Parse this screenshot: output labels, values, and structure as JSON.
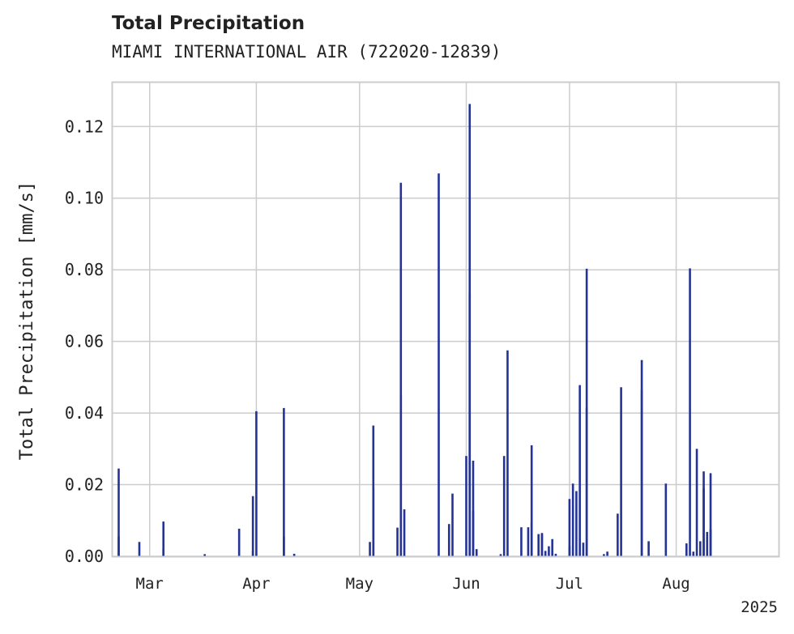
{
  "chart_data": {
    "type": "bar",
    "title": "Total Precipitation",
    "subtitle": "MIAMI INTERNATIONAL AIR (722020-12839)",
    "ylabel": "Total Precipitation [mm/s]",
    "xlabel": "",
    "ylim": [
      0,
      0.1325
    ],
    "xlim": [
      "2025-02-18",
      "2025-08-31"
    ],
    "grid": true,
    "yticks": [
      "0.00",
      "0.02",
      "0.04",
      "0.06",
      "0.08",
      "0.10",
      "0.12"
    ],
    "ytick_values": [
      0,
      0.02,
      0.04,
      0.06,
      0.08,
      0.1,
      0.12
    ],
    "xticks": [
      {
        "date": "2025-03-01",
        "label": "Mar"
      },
      {
        "date": "2025-04-01",
        "label": "Apr"
      },
      {
        "date": "2025-05-01",
        "label": "May"
      },
      {
        "date": "2025-06-01",
        "label": "Jun"
      },
      {
        "date": "2025-07-01",
        "label": "Jul"
      },
      {
        "date": "2025-08-01",
        "label": "Aug"
      }
    ],
    "year_label": "2025",
    "series_color": "#233396",
    "points": [
      [
        "2025-02-20",
        0.0055
      ],
      [
        "2025-02-20",
        0.0245
      ],
      [
        "2025-02-26",
        0.004
      ],
      [
        "2025-03-05",
        0.0097
      ],
      [
        "2025-03-05",
        0.002
      ],
      [
        "2025-03-17",
        0.0006
      ],
      [
        "2025-03-27",
        0.0077
      ],
      [
        "2025-03-31",
        0.0014
      ],
      [
        "2025-03-31",
        0.0168
      ],
      [
        "2025-04-01",
        0.0405
      ],
      [
        "2025-04-09",
        0.0055
      ],
      [
        "2025-04-09",
        0.0414
      ],
      [
        "2025-04-12",
        0.0007
      ],
      [
        "2025-05-04",
        0.004
      ],
      [
        "2025-05-05",
        0.0365
      ],
      [
        "2025-05-05",
        0.019
      ],
      [
        "2025-05-12",
        0.008
      ],
      [
        "2025-05-13",
        0.1043
      ],
      [
        "2025-05-13",
        0.0451
      ],
      [
        "2025-05-14",
        0.0131
      ],
      [
        "2025-05-24",
        0.1069
      ],
      [
        "2025-05-27",
        0.009
      ],
      [
        "2025-05-28",
        0.0175
      ],
      [
        "2025-06-01",
        0.028
      ],
      [
        "2025-06-02",
        0.0735
      ],
      [
        "2025-06-02",
        0.1263
      ],
      [
        "2025-06-03",
        0.0267
      ],
      [
        "2025-06-03",
        0.0127
      ],
      [
        "2025-06-04",
        0.002
      ],
      [
        "2025-06-11",
        0.0006
      ],
      [
        "2025-06-12",
        0.028
      ],
      [
        "2025-06-13",
        0.0575
      ],
      [
        "2025-06-17",
        0.0081
      ],
      [
        "2025-06-19",
        0.0081
      ],
      [
        "2025-06-20",
        0.031
      ],
      [
        "2025-06-20",
        0.0095
      ],
      [
        "2025-06-22",
        0.0062
      ],
      [
        "2025-06-23",
        0.0065
      ],
      [
        "2025-06-23",
        0.0062
      ],
      [
        "2025-06-24",
        0.0015
      ],
      [
        "2025-06-25",
        0.0028
      ],
      [
        "2025-06-26",
        0.0048
      ],
      [
        "2025-06-27",
        0.0007
      ],
      [
        "2025-07-01",
        0.0028
      ],
      [
        "2025-07-01",
        0.016
      ],
      [
        "2025-07-02",
        0.0203
      ],
      [
        "2025-07-03",
        0.0182
      ],
      [
        "2025-07-04",
        0.0478
      ],
      [
        "2025-07-05",
        0.0038
      ],
      [
        "2025-07-06",
        0.0415
      ],
      [
        "2025-07-06",
        0.0803
      ],
      [
        "2025-07-11",
        0.0006
      ],
      [
        "2025-07-12",
        0.0013
      ],
      [
        "2025-07-15",
        0.0119
      ],
      [
        "2025-07-16",
        0.0472
      ],
      [
        "2025-07-22",
        0.0464
      ],
      [
        "2025-07-22",
        0.0548
      ],
      [
        "2025-07-24",
        0.0042
      ],
      [
        "2025-07-29",
        0.0203
      ],
      [
        "2025-08-04",
        0.0036
      ],
      [
        "2025-08-05",
        0.0804
      ],
      [
        "2025-08-06",
        0.0013
      ],
      [
        "2025-08-07",
        0.03
      ],
      [
        "2025-08-08",
        0.0042
      ],
      [
        "2025-08-09",
        0.019
      ],
      [
        "2025-08-09",
        0.0237
      ],
      [
        "2025-08-10",
        0.0068
      ],
      [
        "2025-08-11",
        0.0232
      ],
      [
        "2025-08-11",
        0.0075
      ]
    ]
  }
}
